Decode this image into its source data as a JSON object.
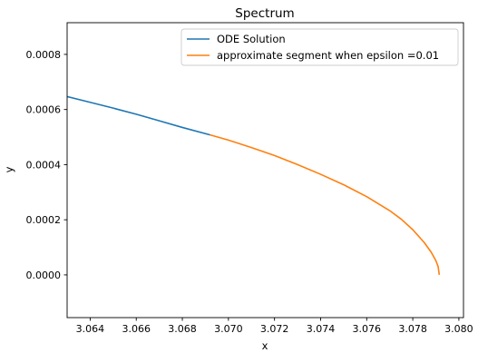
{
  "chart_data": {
    "type": "line",
    "title": "Spectrum",
    "xlabel": "x",
    "ylabel": "y",
    "xlim": [
      3.063,
      3.0802
    ],
    "ylim": [
      -0.000155,
      0.000915
    ],
    "x_ticks": [
      3.064,
      3.066,
      3.068,
      3.07,
      3.072,
      3.074,
      3.076,
      3.078,
      3.08
    ],
    "x_tick_labels": [
      "3.064",
      "3.066",
      "3.068",
      "3.070",
      "3.072",
      "3.074",
      "3.076",
      "3.078",
      "3.080"
    ],
    "y_ticks": [
      0.0,
      0.0002,
      0.0004,
      0.0006,
      0.0008
    ],
    "y_tick_labels": [
      "0.0000",
      "0.0002",
      "0.0004",
      "0.0006",
      "0.0008"
    ],
    "grid": false,
    "legend_position": "top-right",
    "series": [
      {
        "name": "ODE Solution",
        "color": "#1f77b4",
        "x": [
          3.063,
          3.064,
          3.065,
          3.066,
          3.067,
          3.068,
          3.0692
        ],
        "y": [
          0.000647,
          0.000626,
          0.000605,
          0.000583,
          0.000559,
          0.000535,
          0.000508
        ]
      },
      {
        "name": "approximate segment when epsilon =0.01",
        "color": "#ff7f0e",
        "x": [
          3.0692,
          3.07,
          3.071,
          3.072,
          3.073,
          3.074,
          3.075,
          3.076,
          3.077,
          3.0775,
          3.078,
          3.0785,
          3.0788,
          3.079,
          3.0791,
          3.07915
        ],
        "y": [
          0.000508,
          0.000489,
          0.000462,
          0.000433,
          0.0004,
          0.000365,
          0.000327,
          0.000284,
          0.000233,
          0.000202,
          0.000164,
          0.000117,
          8.2e-05,
          5.2e-05,
          3e-05,
          0.0
        ]
      }
    ]
  }
}
